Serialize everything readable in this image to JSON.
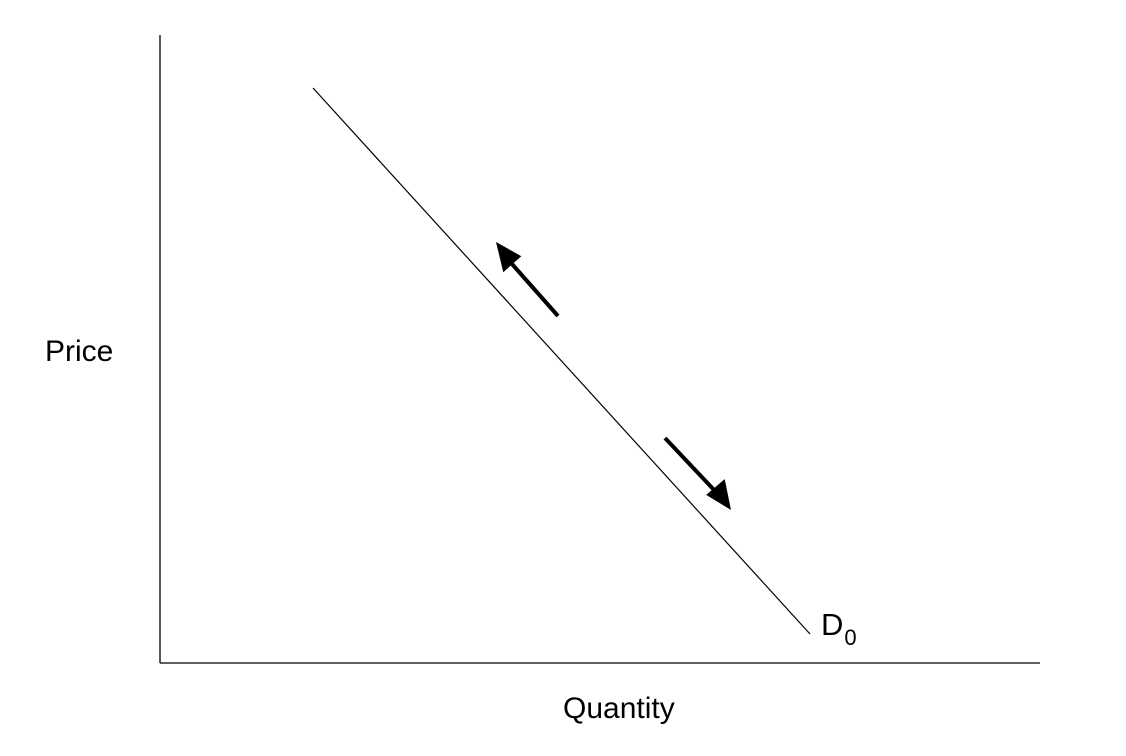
{
  "diagram": {
    "ylabel": "Price",
    "xlabel": "Quantity",
    "curve": {
      "label_main": "D",
      "label_sub": "0"
    },
    "colors": {
      "stroke": "#000000",
      "background": "#ffffff"
    }
  }
}
